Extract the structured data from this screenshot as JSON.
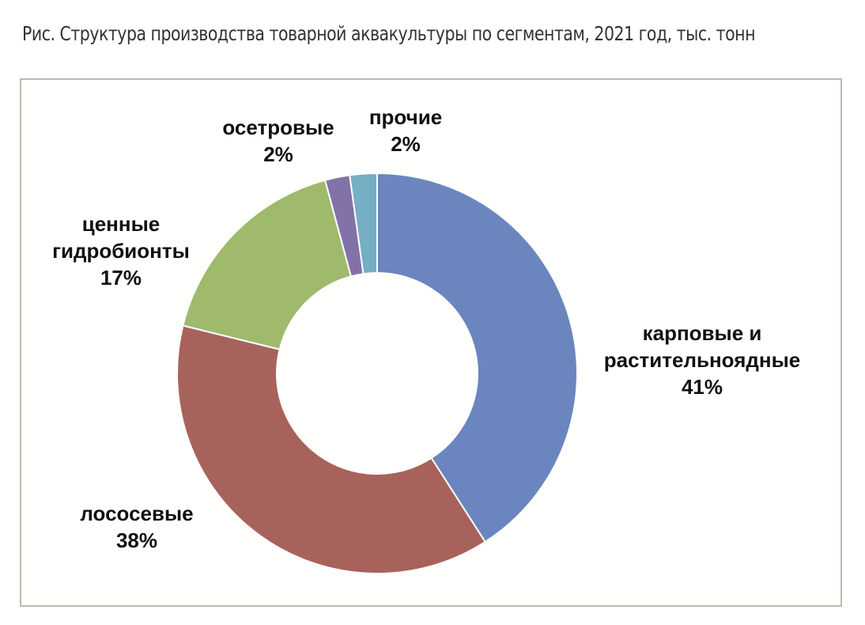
{
  "caption": "Рис. Структура производства товарной аквакультуры по сегментам, 2021 год, тыс. тонн",
  "chart_data": {
    "type": "pie",
    "donut": true,
    "title": "",
    "legend": "none",
    "slices": [
      {
        "label_lines": [
          "карповые и",
          "растительноядные"
        ],
        "percent_label": "41%",
        "value": 41,
        "color": "#6b86be"
      },
      {
        "label_lines": [
          "лососевые"
        ],
        "percent_label": "38%",
        "value": 38,
        "color": "#a8625c"
      },
      {
        "label_lines": [
          "ценные",
          "гидробионты"
        ],
        "percent_label": "17%",
        "value": 17,
        "color": "#9fba6c"
      },
      {
        "label_lines": [
          "осетровые"
        ],
        "percent_label": "2%",
        "value": 2,
        "color": "#8272a8"
      },
      {
        "label_lines": [
          "прочие"
        ],
        "percent_label": "2%",
        "value": 2.2,
        "color": "#76aec4"
      }
    ]
  }
}
